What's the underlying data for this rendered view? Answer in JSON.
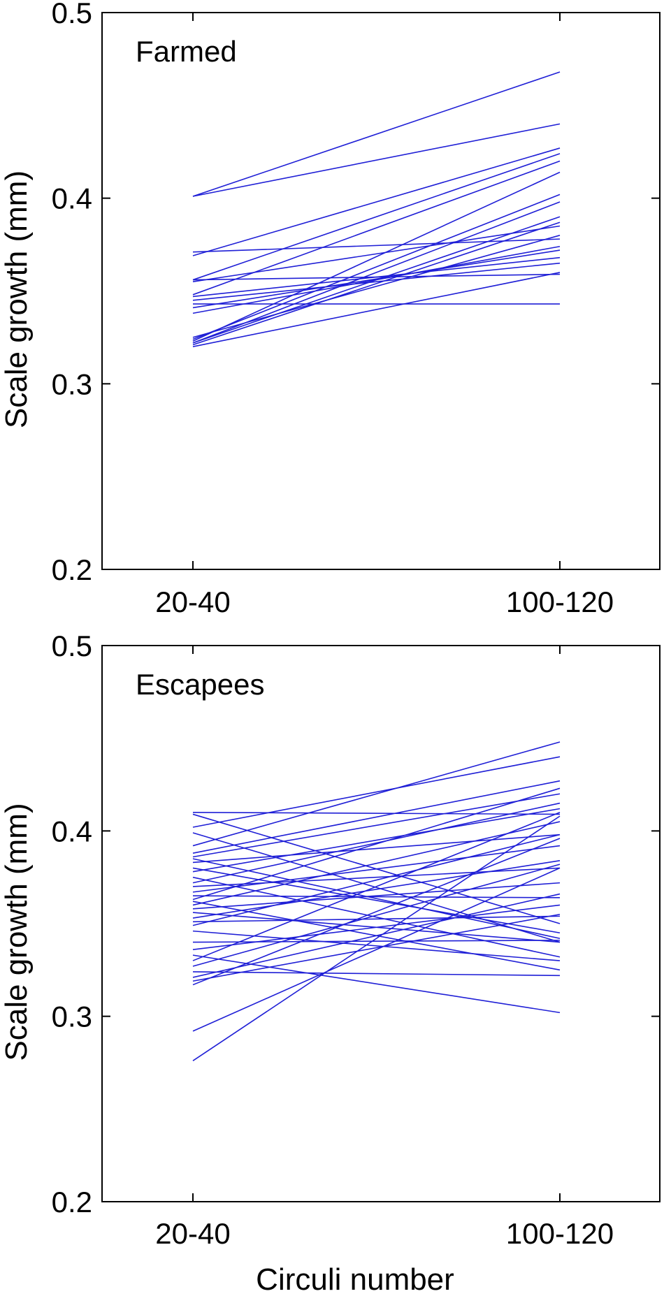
{
  "series_color": "#1f1fd6",
  "chart_data": [
    {
      "type": "line",
      "panel_label": "Farmed",
      "categories": [
        "20-40",
        "100-120"
      ],
      "ylabel": "Scale growth (mm)",
      "ylim": [
        0.2,
        0.5
      ],
      "yticks": [
        "0.2",
        "0.3",
        "0.4",
        "0.5"
      ],
      "grid": false,
      "series": [
        {
          "values": [
            0.401,
            0.468
          ]
        },
        {
          "values": [
            0.401,
            0.44
          ]
        },
        {
          "values": [
            0.369,
            0.427
          ]
        },
        {
          "values": [
            0.371,
            0.378
          ]
        },
        {
          "values": [
            0.356,
            0.424
          ]
        },
        {
          "values": [
            0.356,
            0.359
          ]
        },
        {
          "values": [
            0.348,
            0.42
          ]
        },
        {
          "values": [
            0.347,
            0.368
          ]
        },
        {
          "values": [
            0.345,
            0.365
          ]
        },
        {
          "values": [
            0.343,
            0.343
          ]
        },
        {
          "values": [
            0.341,
            0.372
          ]
        },
        {
          "values": [
            0.338,
            0.374
          ]
        },
        {
          "values": [
            0.324,
            0.402
          ]
        },
        {
          "values": [
            0.323,
            0.414
          ]
        },
        {
          "values": [
            0.322,
            0.39
          ]
        },
        {
          "values": [
            0.321,
            0.387
          ]
        },
        {
          "values": [
            0.32,
            0.36
          ]
        },
        {
          "values": [
            0.325,
            0.38
          ]
        },
        {
          "values": [
            0.355,
            0.385
          ]
        },
        {
          "values": [
            0.322,
            0.398
          ]
        }
      ]
    },
    {
      "type": "line",
      "panel_label": "Escapees",
      "categories": [
        "20-40",
        "100-120"
      ],
      "xlabel": "Circuli number",
      "ylabel": "Scale growth (mm)",
      "ylim": [
        0.2,
        0.5
      ],
      "yticks": [
        "0.2",
        "0.3",
        "0.4",
        "0.5"
      ],
      "grid": false,
      "series": [
        {
          "values": [
            0.41,
            0.409
          ]
        },
        {
          "values": [
            0.409,
            0.35
          ]
        },
        {
          "values": [
            0.402,
            0.44
          ]
        },
        {
          "values": [
            0.399,
            0.34
          ]
        },
        {
          "values": [
            0.392,
            0.448
          ]
        },
        {
          "values": [
            0.388,
            0.427
          ]
        },
        {
          "values": [
            0.386,
            0.42
          ]
        },
        {
          "values": [
            0.383,
            0.398
          ]
        },
        {
          "values": [
            0.38,
            0.345
          ]
        },
        {
          "values": [
            0.378,
            0.412
          ]
        },
        {
          "values": [
            0.375,
            0.332
          ]
        },
        {
          "values": [
            0.372,
            0.415
          ]
        },
        {
          "values": [
            0.37,
            0.38
          ]
        },
        {
          "values": [
            0.367,
            0.392
          ]
        },
        {
          "values": [
            0.365,
            0.364
          ]
        },
        {
          "values": [
            0.362,
            0.325
          ]
        },
        {
          "values": [
            0.36,
            0.405
          ]
        },
        {
          "values": [
            0.358,
            0.372
          ]
        },
        {
          "values": [
            0.356,
            0.34
          ]
        },
        {
          "values": [
            0.353,
            0.384
          ]
        },
        {
          "values": [
            0.351,
            0.354
          ]
        },
        {
          "values": [
            0.349,
            0.398
          ]
        },
        {
          "values": [
            0.346,
            0.33
          ]
        },
        {
          "values": [
            0.34,
            0.341
          ]
        },
        {
          "values": [
            0.336,
            0.36
          ]
        },
        {
          "values": [
            0.333,
            0.302
          ]
        },
        {
          "values": [
            0.33,
            0.41
          ]
        },
        {
          "values": [
            0.327,
            0.382
          ]
        },
        {
          "values": [
            0.324,
            0.322
          ]
        },
        {
          "values": [
            0.321,
            0.366
          ]
        },
        {
          "values": [
            0.319,
            0.355
          ]
        },
        {
          "values": [
            0.317,
            0.396
          ]
        },
        {
          "values": [
            0.292,
            0.38
          ]
        },
        {
          "values": [
            0.276,
            0.408
          ]
        },
        {
          "values": [
            0.385,
            0.342
          ]
        },
        {
          "values": [
            0.363,
            0.423
          ]
        }
      ]
    }
  ]
}
